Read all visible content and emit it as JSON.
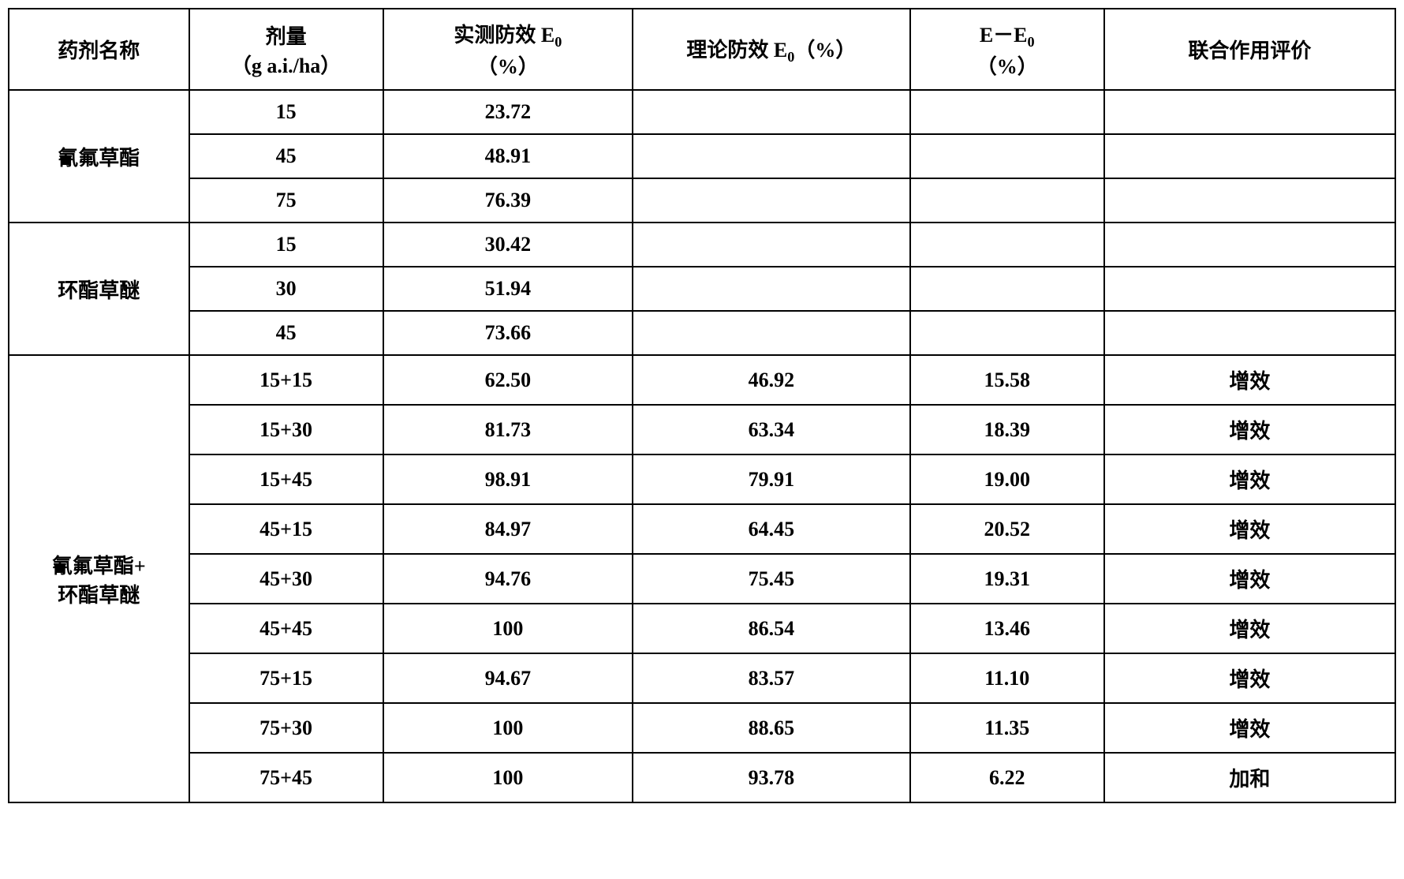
{
  "table": {
    "type": "table",
    "background_color": "#ffffff",
    "border_color": "#000000",
    "border_width": 2,
    "font_size": 26,
    "font_weight": "bold",
    "text_color": "#000000",
    "columns": [
      {
        "key": "name",
        "label_line1": "药剂名称",
        "label_line2": "",
        "width_pct": 13
      },
      {
        "key": "dose",
        "label_line1": "剂量",
        "label_line2": "（g a.i./ha）",
        "width_pct": 14
      },
      {
        "key": "observed",
        "label_line1": "实测防效 E",
        "label_sub": "0",
        "label_line2": "（%）",
        "width_pct": 18
      },
      {
        "key": "theoretical",
        "label_line1": "理论防效 E",
        "label_sub": "0",
        "label_suffix": "（%）",
        "width_pct": 20
      },
      {
        "key": "diff",
        "label_line1": "E－E",
        "label_sub": "0",
        "label_line2": "（%）",
        "width_pct": 14
      },
      {
        "key": "evaluation",
        "label_line1": "联合作用评价",
        "label_line2": "",
        "width_pct": 21
      }
    ],
    "groups": [
      {
        "name": "氰氟草酯",
        "rows": [
          {
            "dose": "15",
            "observed": "23.72",
            "theoretical": "",
            "diff": "",
            "evaluation": ""
          },
          {
            "dose": "45",
            "observed": "48.91",
            "theoretical": "",
            "diff": "",
            "evaluation": ""
          },
          {
            "dose": "75",
            "observed": "76.39",
            "theoretical": "",
            "diff": "",
            "evaluation": ""
          }
        ]
      },
      {
        "name": "环酯草醚",
        "rows": [
          {
            "dose": "15",
            "observed": "30.42",
            "theoretical": "",
            "diff": "",
            "evaluation": ""
          },
          {
            "dose": "30",
            "observed": "51.94",
            "theoretical": "",
            "diff": "",
            "evaluation": ""
          },
          {
            "dose": "45",
            "observed": "73.66",
            "theoretical": "",
            "diff": "",
            "evaluation": ""
          }
        ]
      },
      {
        "name_line1": "氰氟草酯+",
        "name_line2": "环酯草醚",
        "rows": [
          {
            "dose": "15+15",
            "observed": "62.50",
            "theoretical": "46.92",
            "diff": "15.58",
            "evaluation": "增效"
          },
          {
            "dose": "15+30",
            "observed": "81.73",
            "theoretical": "63.34",
            "diff": "18.39",
            "evaluation": "增效"
          },
          {
            "dose": "15+45",
            "observed": "98.91",
            "theoretical": "79.91",
            "diff": "19.00",
            "evaluation": "增效"
          },
          {
            "dose": "45+15",
            "observed": "84.97",
            "theoretical": "64.45",
            "diff": "20.52",
            "evaluation": "增效"
          },
          {
            "dose": "45+30",
            "observed": "94.76",
            "theoretical": "75.45",
            "diff": "19.31",
            "evaluation": "增效"
          },
          {
            "dose": "45+45",
            "observed": "100",
            "theoretical": "86.54",
            "diff": "13.46",
            "evaluation": "增效"
          },
          {
            "dose": "75+15",
            "observed": "94.67",
            "theoretical": "83.57",
            "diff": "11.10",
            "evaluation": "增效"
          },
          {
            "dose": "75+30",
            "observed": "100",
            "theoretical": "88.65",
            "diff": "11.35",
            "evaluation": "增效"
          },
          {
            "dose": "75+45",
            "observed": "100",
            "theoretical": "93.78",
            "diff": "6.22",
            "evaluation": "加和"
          }
        ]
      }
    ]
  }
}
